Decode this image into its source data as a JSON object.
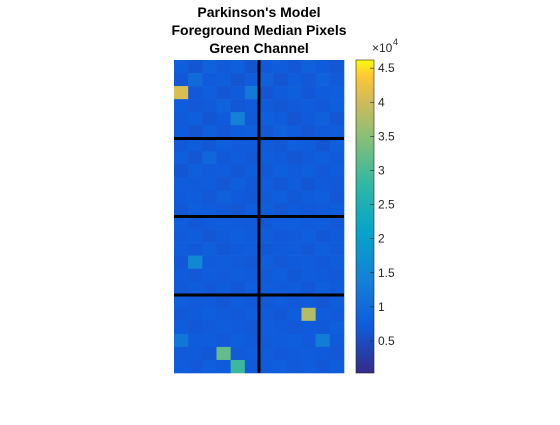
{
  "chart_data": {
    "type": "heatmap",
    "title": [
      "Parkinson's Model",
      "Foreground Median Pixels",
      "Green Channel"
    ],
    "colormap": "parula",
    "clim": [
      300,
      46200
    ],
    "colorbar_multiplier": {
      "base": "×10",
      "exponent": "4"
    },
    "cticks": [
      {
        "value": 5000,
        "label": "0.5"
      },
      {
        "value": 10000,
        "label": "1"
      },
      {
        "value": 15000,
        "label": "1.5"
      },
      {
        "value": 20000,
        "label": "2"
      },
      {
        "value": 25000,
        "label": "2.5"
      },
      {
        "value": 30000,
        "label": "3"
      },
      {
        "value": 35000,
        "label": "3.5"
      },
      {
        "value": 40000,
        "label": "4"
      },
      {
        "value": 45000,
        "label": "4.5"
      }
    ],
    "z": [
      [
        7200,
        6400,
        8100,
        6900,
        7500,
        6100,
        6800,
        7300,
        6600,
        8000,
        7100,
        6500
      ],
      [
        6600,
        9800,
        7000,
        7700,
        6300,
        7400,
        7900,
        6200,
        7200,
        6700,
        8300,
        6900
      ],
      [
        41000,
        6800,
        7600,
        6500,
        7100,
        12500,
        6400,
        7000,
        7800,
        6600,
        7200,
        7500
      ],
      [
        7300,
        6700,
        6900,
        8200,
        6600,
        7000,
        7100,
        6500,
        6900,
        7400,
        6800,
        7700
      ],
      [
        6900,
        7500,
        6400,
        7100,
        13800,
        6800,
        7600,
        7200,
        6300,
        7000,
        7900,
        6600
      ],
      [
        7100,
        6300,
        7800,
        6700,
        7200,
        7600,
        6700,
        8100,
        7400,
        6500,
        7000,
        7300
      ],
      [
        6800,
        7300,
        6600,
        7500,
        6900,
        7100,
        7000,
        6600,
        7700,
        7200,
        6400,
        7800
      ],
      [
        7600,
        6500,
        9200,
        6800,
        7300,
        6700,
        7400,
        7100,
        6500,
        6900,
        7600,
        7000
      ],
      [
        6400,
        7800,
        7000,
        7200,
        6600,
        7400,
        6800,
        7500,
        7000,
        7800,
        6700,
        7200
      ],
      [
        7200,
        6900,
        7400,
        6500,
        7700,
        6800,
        7300,
        6600,
        7200,
        6400,
        7100,
        6800
      ],
      [
        7000,
        7300,
        6700,
        7900,
        7100,
        6600,
        6900,
        7800,
        6700,
        7300,
        7500,
        6600
      ],
      [
        6700,
        7600,
        7200,
        6800,
        6500,
        7500,
        7700,
        6500,
        7100,
        6800,
        6900,
        7400
      ],
      [
        7400,
        6600,
        7100,
        7300,
        7000,
        6900,
        6600,
        7400,
        7600,
        7000,
        7300,
        6700
      ],
      [
        6900,
        7200,
        6500,
        7000,
        7600,
        7100,
        7200,
        6800,
        6900,
        7500,
        6600,
        7100
      ],
      [
        7300,
        6800,
        7700,
        6600,
        7100,
        7300,
        6800,
        7100,
        7300,
        6700,
        7600,
        6900
      ],
      [
        6600,
        15500,
        7000,
        7400,
        6900,
        6700,
        7500,
        6700,
        7000,
        7200,
        6800,
        7300
      ],
      [
        7100,
        6700,
        7300,
        6900,
        7400,
        7000,
        6900,
        7600,
        6600,
        7300,
        7000,
        6800
      ],
      [
        6800,
        7400,
        6700,
        7200,
        6600,
        7500,
        7300,
        6900,
        7400,
        6600,
        7700,
        7100
      ],
      [
        7500,
        6900,
        7100,
        6500,
        7300,
        6800,
        6700,
        7200,
        6800,
        7000,
        6500,
        7400
      ],
      [
        6700,
        7100,
        7600,
        7000,
        6800,
        7200,
        7100,
        6600,
        7300,
        38000,
        7200,
        6900
      ],
      [
        7200,
        6600,
        6900,
        7400,
        7100,
        6700,
        7400,
        7000,
        6700,
        7100,
        6800,
        7600
      ],
      [
        11800,
        7300,
        7200,
        6800,
        7500,
        7000,
        6900,
        7300,
        7500,
        6900,
        13200,
        7000
      ],
      [
        6900,
        7000,
        6600,
        32000,
        6900,
        7400,
        7200,
        6800,
        7000,
        7400,
        7100,
        6700
      ],
      [
        7400,
        6800,
        7500,
        7100,
        29000,
        6900,
        7000,
        7500,
        6900,
        7200,
        6600,
        7300
      ]
    ]
  }
}
